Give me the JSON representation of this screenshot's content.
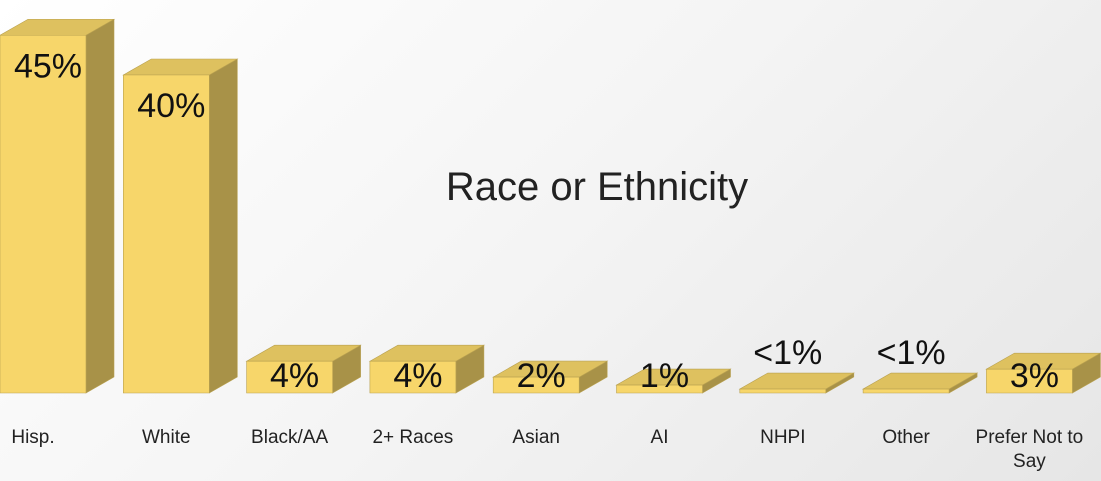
{
  "chart_data": {
    "type": "bar3d",
    "title": "Race or Ethnicity",
    "categories": [
      "Hisp.",
      "White",
      "Black/AA",
      "2+ Races",
      "Asian",
      "AI",
      "NHPI",
      "Other",
      "Prefer Not to Say"
    ],
    "values": [
      45,
      40,
      4,
      4,
      2,
      1,
      0.5,
      0.5,
      3
    ],
    "value_labels": [
      "45%",
      "40%",
      "4%",
      "4%",
      "2%",
      "1%",
      "<1%",
      "<1%",
      "3%"
    ],
    "color": "#f7d66a"
  }
}
